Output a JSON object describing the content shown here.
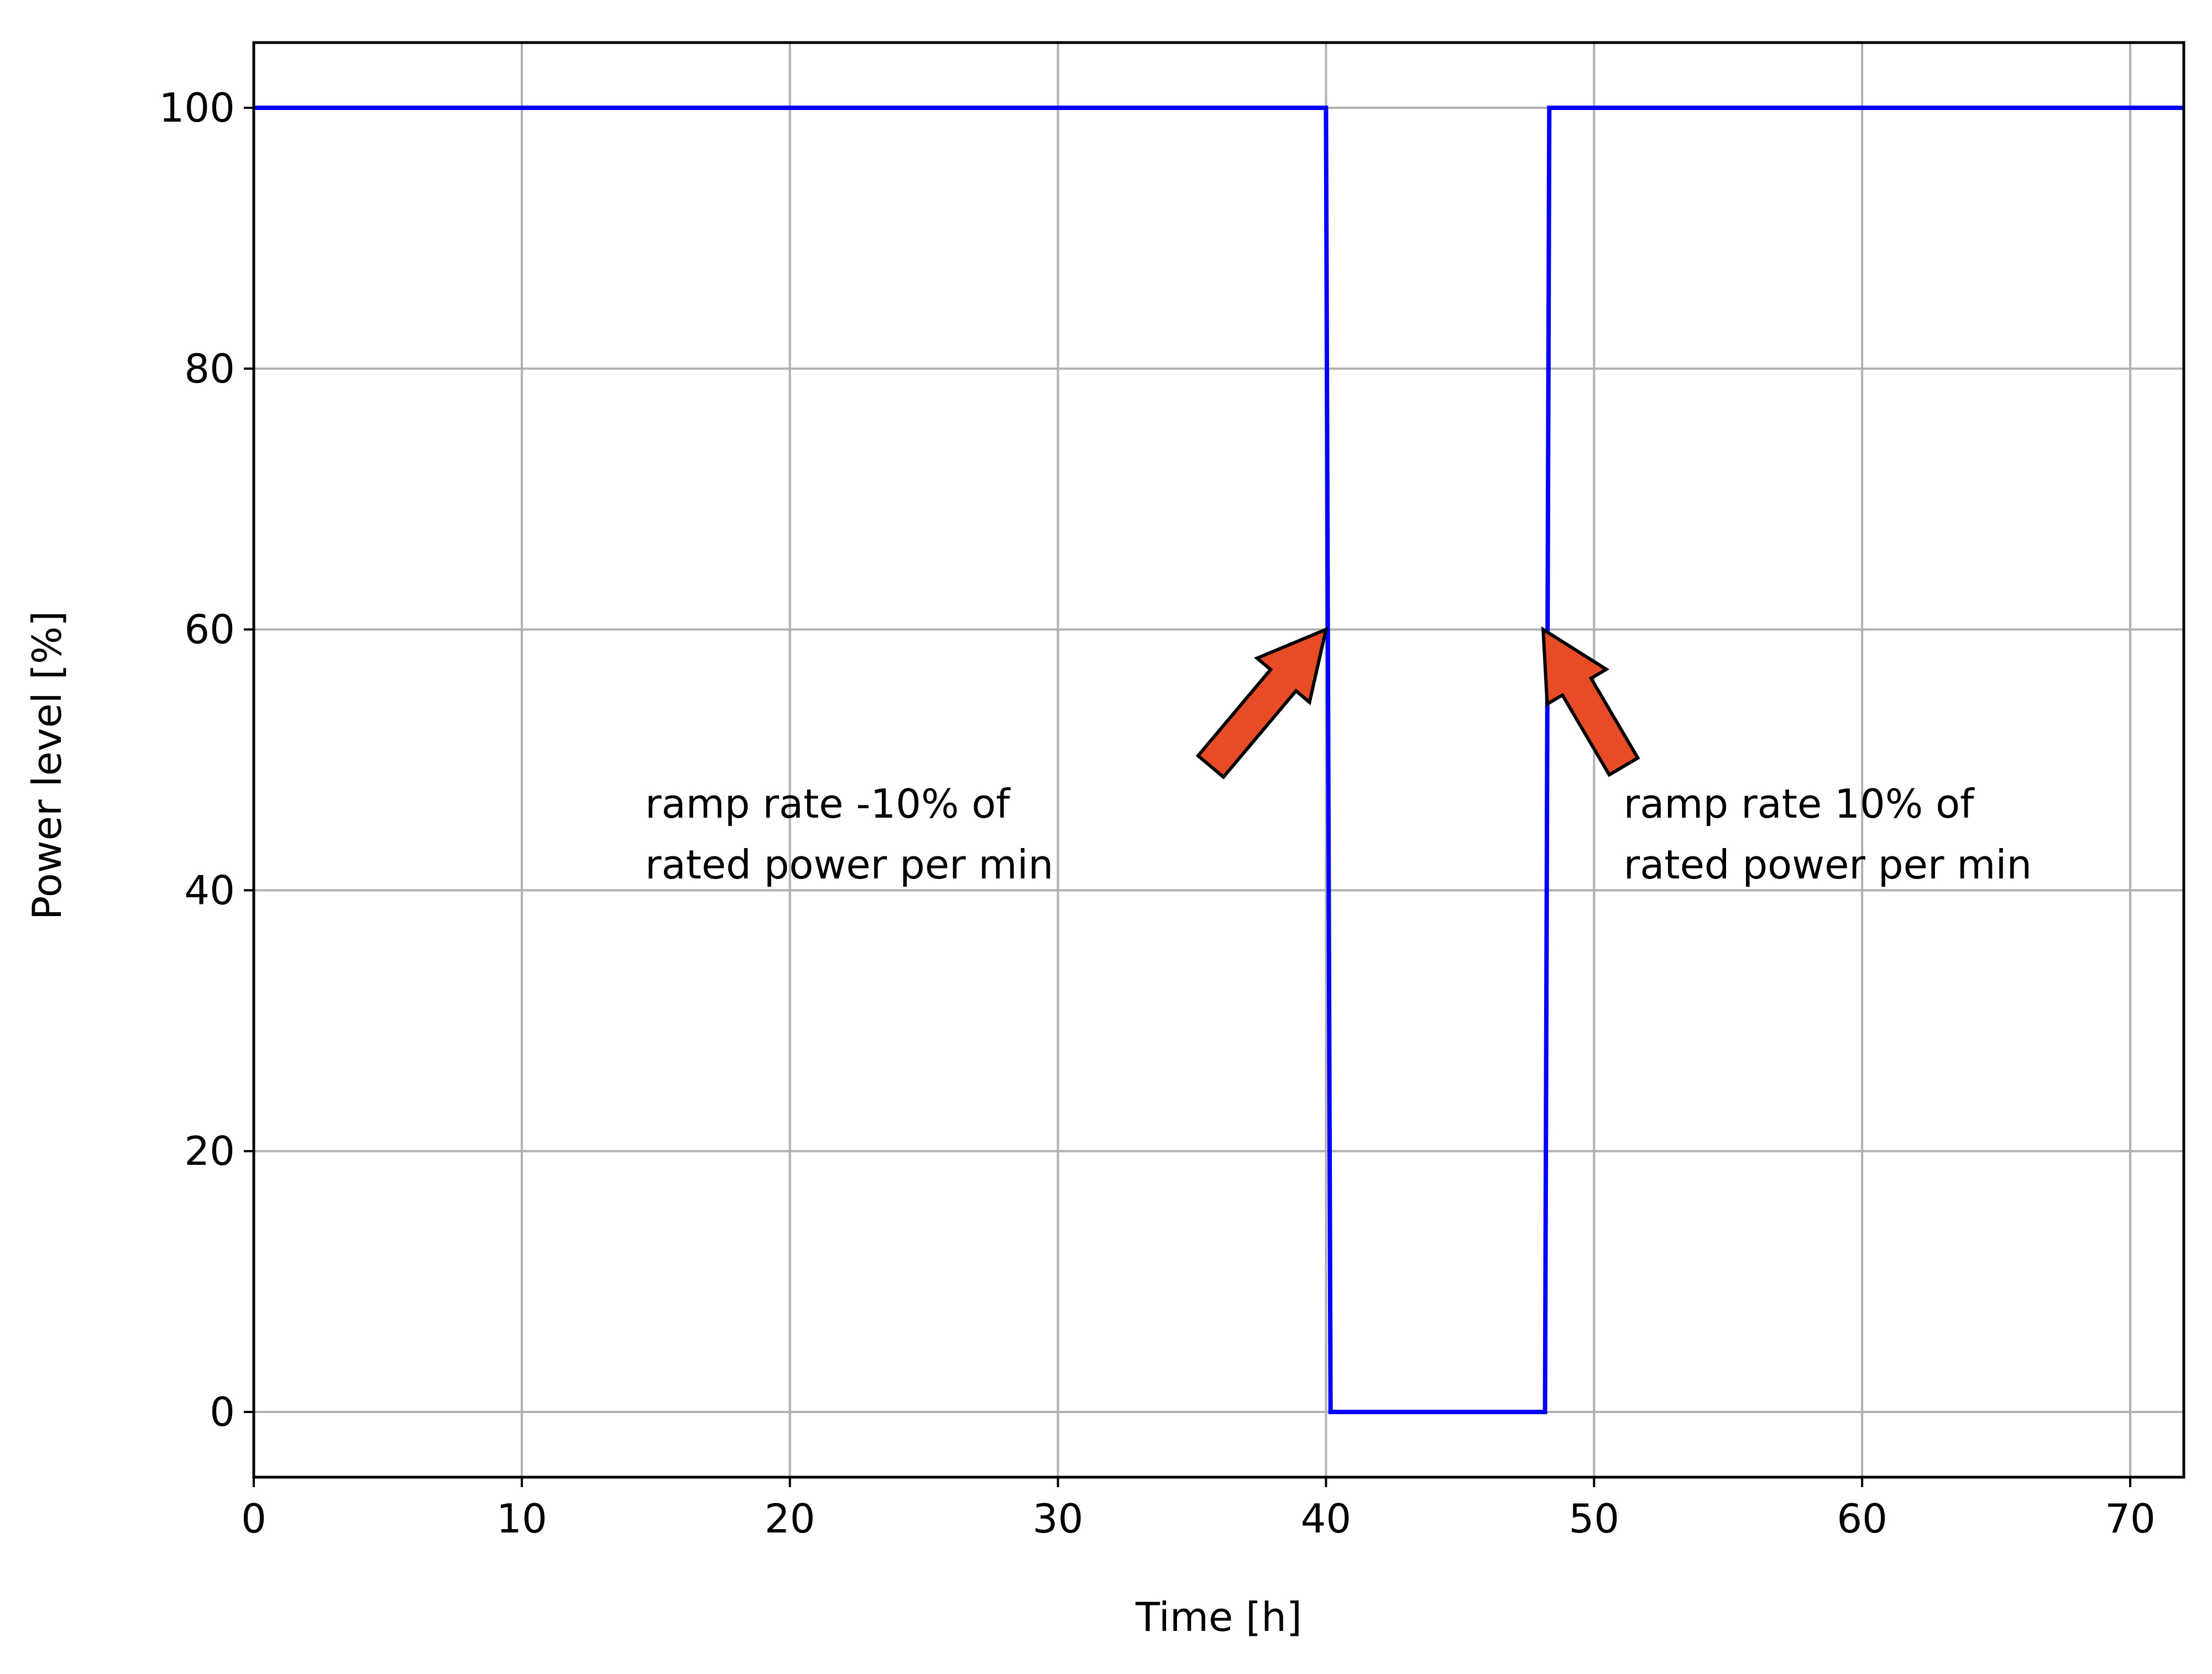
{
  "chart_data": {
    "type": "line",
    "title": "",
    "xlabel": "Time [h]",
    "ylabel": "Power level [%]",
    "xlim": [
      0,
      72
    ],
    "ylim": [
      -5,
      105
    ],
    "xticks": [
      0,
      10,
      20,
      30,
      40,
      50,
      60,
      70
    ],
    "yticks": [
      0,
      20,
      40,
      60,
      80,
      100
    ],
    "grid": true,
    "series": [
      {
        "color": "#0000ff",
        "x": [
          0,
          40,
          40.17,
          48.17,
          48.33,
          72
        ],
        "y": [
          100,
          100,
          0,
          0,
          100,
          100
        ]
      }
    ],
    "annotations": [
      {
        "text_lines": [
          "ramp rate -10% of",
          "rated power per min"
        ],
        "arrow_tip": [
          40,
          60
        ],
        "arrow_tail": [
          35.7,
          49.5
        ],
        "text_anchor": [
          14.6,
          45
        ]
      },
      {
        "text_lines": [
          "ramp rate 10% of",
          "rated power per min"
        ],
        "arrow_tip": [
          48.1,
          60
        ],
        "arrow_tail": [
          51.1,
          49.5
        ],
        "text_anchor": [
          51.1,
          45
        ]
      }
    ],
    "arrow_color": "#e84c27",
    "grid_color": "#b0b0b0"
  }
}
